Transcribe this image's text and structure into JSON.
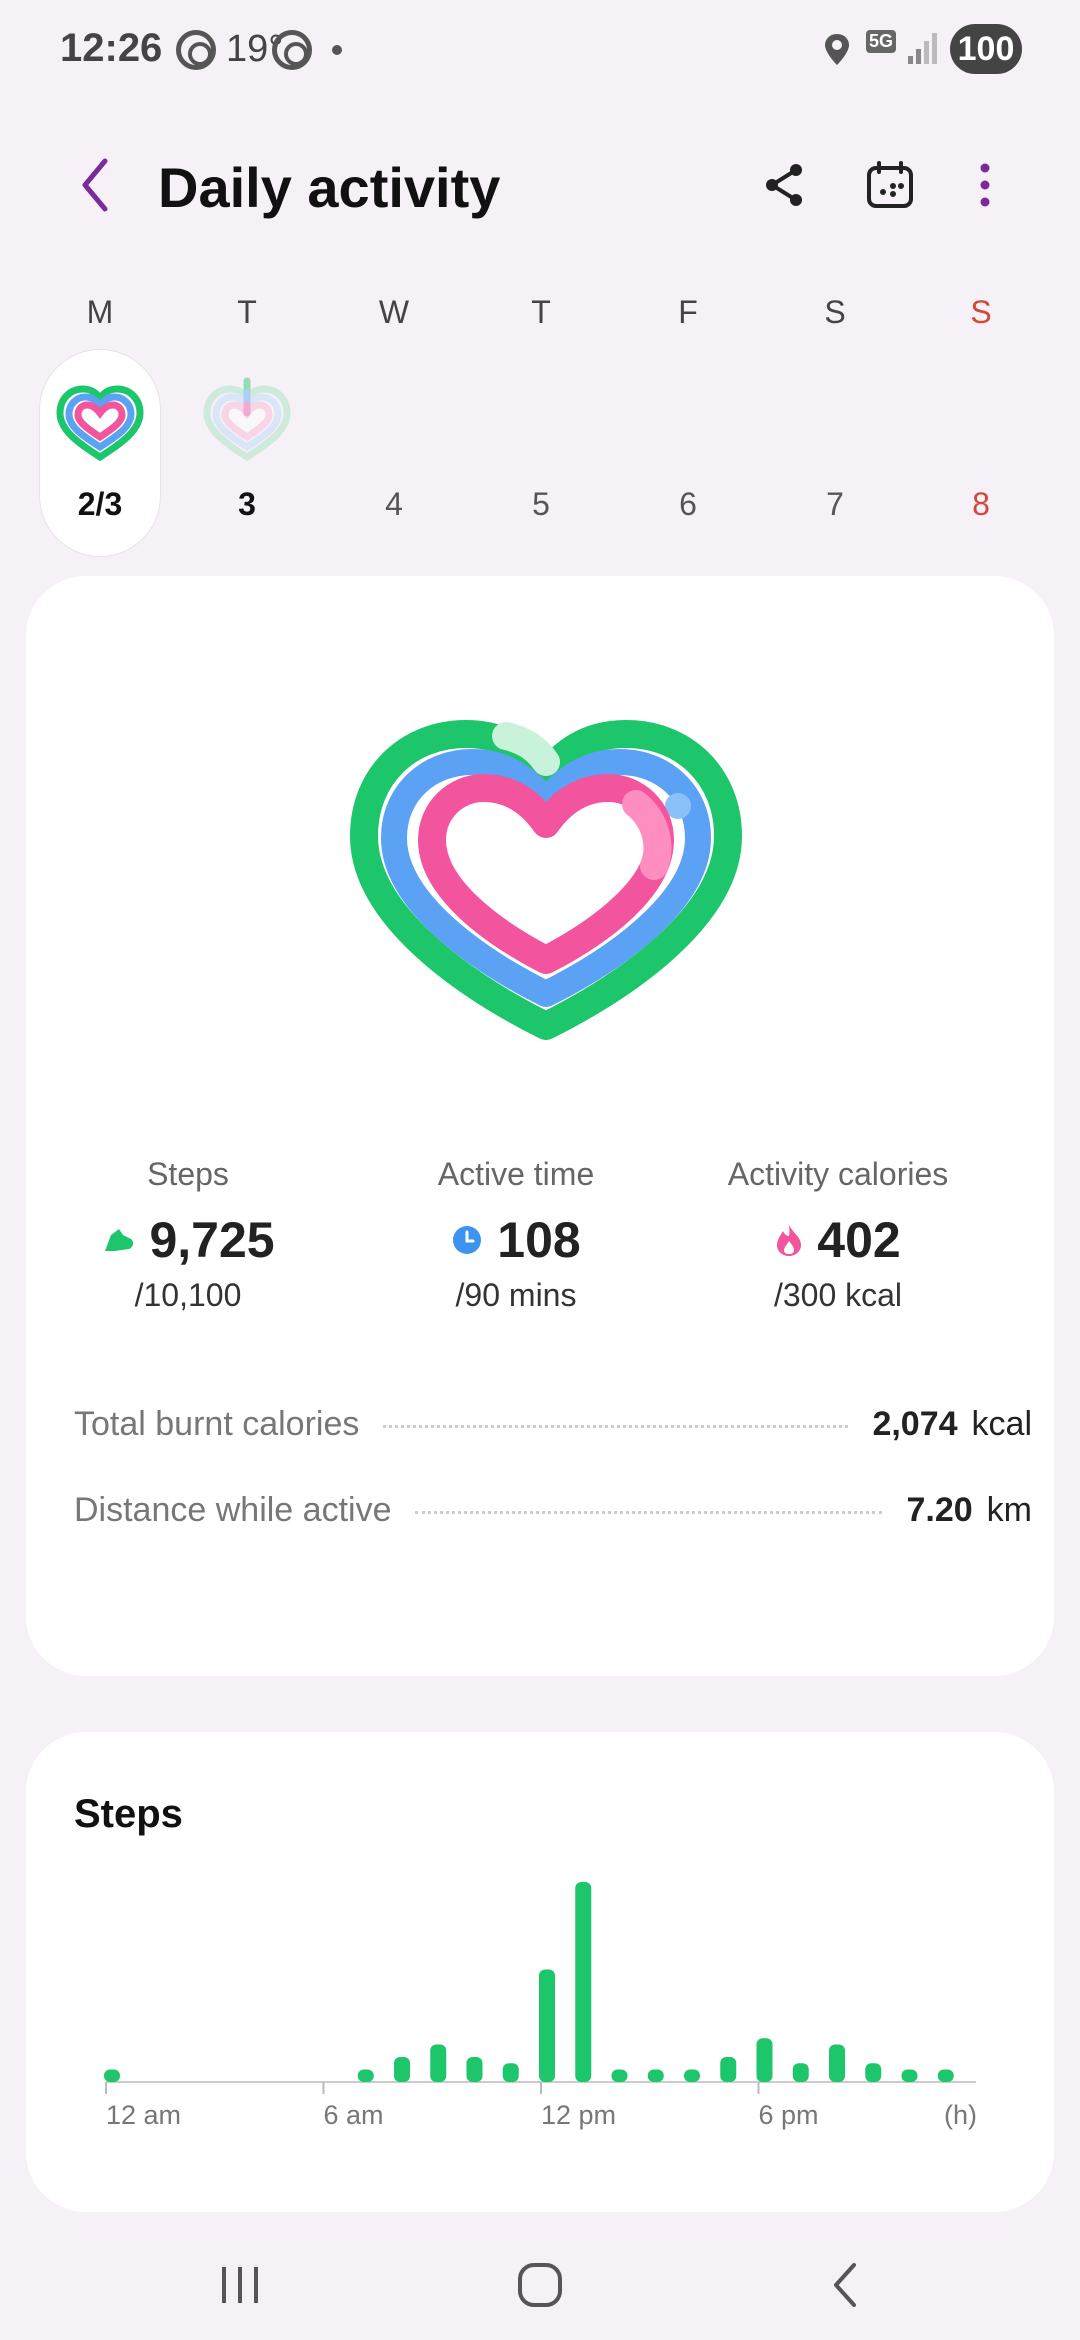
{
  "status_bar": {
    "time": "12:26",
    "temperature": "19°",
    "network": "5G",
    "battery": "100"
  },
  "header": {
    "title": "Daily activity"
  },
  "week": [
    {
      "letter": "M",
      "number": "2/3",
      "selected": true,
      "heart": "full"
    },
    {
      "letter": "T",
      "number": "3",
      "heart": "faded"
    },
    {
      "letter": "W",
      "number": "4"
    },
    {
      "letter": "T",
      "number": "5"
    },
    {
      "letter": "F",
      "number": "6"
    },
    {
      "letter": "S",
      "number": "7"
    },
    {
      "letter": "S",
      "number": "8",
      "sunday": true
    }
  ],
  "stats": {
    "steps": {
      "label": "Steps",
      "value": "9,725",
      "goal": "/10,100",
      "icon": "shoe-icon",
      "color": "#1ec66b"
    },
    "active_time": {
      "label": "Active time",
      "value": "108",
      "goal": "/90 mins",
      "icon": "clock-icon",
      "color": "#3d94f0"
    },
    "calories": {
      "label": "Activity calories",
      "value": "402",
      "goal": "/300 kcal",
      "icon": "flame-icon",
      "color": "#f2559d"
    }
  },
  "rows": {
    "burnt": {
      "label": "Total burnt calories",
      "value": "2,074",
      "unit": "kcal"
    },
    "distance": {
      "label": "Distance while active",
      "value": "7.20",
      "unit": "km"
    }
  },
  "colors": {
    "green": "#1ec66b",
    "blue": "#5ba2f5",
    "pink": "#f2559d",
    "accent": "#7a2a9c"
  },
  "steps_card": {
    "title": "Steps"
  },
  "chart_data": {
    "type": "bar",
    "title": "Steps",
    "xlabel": "(h)",
    "x_ticks": [
      "12 am",
      "6 am",
      "12 pm",
      "6 pm"
    ],
    "x": [
      0,
      7,
      8,
      9,
      10,
      11,
      12,
      13,
      14,
      15,
      16,
      17,
      18,
      19,
      20,
      21,
      22,
      23
    ],
    "values": [
      1,
      1,
      2,
      3,
      2,
      1.5,
      9,
      16,
      1,
      1,
      1,
      2,
      3.5,
      1.5,
      3,
      1.5,
      1,
      1
    ],
    "xlim": [
      0,
      24
    ],
    "grid": false,
    "color": "#1ec66b"
  }
}
